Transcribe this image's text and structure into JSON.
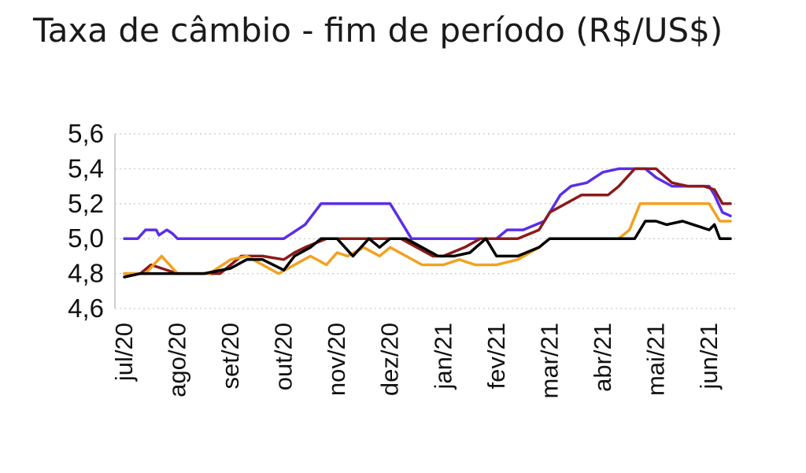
{
  "chart_data": {
    "type": "line",
    "title": "Taxa de câmbio - fim de período (R$/US$)",
    "xlabel": "",
    "ylabel": "",
    "ylim": [
      4.6,
      5.6
    ],
    "yticks": [
      "5,6",
      "5,4",
      "5,2",
      "5,0",
      "4,8",
      "4,6"
    ],
    "ytick_values": [
      5.6,
      5.4,
      5.2,
      5.0,
      4.8,
      4.6
    ],
    "categories": [
      "jul/20",
      "ago/20",
      "set/20",
      "out/20",
      "nov/20",
      "dez/20",
      "jan/21",
      "fev/21",
      "mar/21",
      "abr/21",
      "mai/21",
      "jun/21"
    ],
    "grid": true,
    "legend": "none",
    "series": [
      {
        "color": "#5b2ee6",
        "x": [
          0,
          0.25,
          0.4,
          0.6,
          0.65,
          0.8,
          0.9,
          1,
          2,
          3,
          3.4,
          3.7,
          3.9,
          4,
          4.5,
          5,
          5.2,
          5.4,
          5.7,
          6,
          6.5,
          7,
          7.2,
          7.5,
          7.9,
          8,
          8.2,
          8.4,
          8.7,
          9,
          9.3,
          9.6,
          9.8,
          10,
          10.3,
          10.5,
          10.7,
          11,
          11.1,
          11.25,
          11.4
        ],
        "y": [
          5.0,
          5.0,
          5.05,
          5.05,
          5.02,
          5.05,
          5.03,
          5.0,
          5.0,
          5.0,
          5.08,
          5.2,
          5.2,
          5.2,
          5.2,
          5.2,
          5.1,
          5.0,
          5.0,
          5.0,
          5.0,
          5.0,
          5.05,
          5.05,
          5.1,
          5.15,
          5.25,
          5.3,
          5.32,
          5.38,
          5.4,
          5.4,
          5.4,
          5.35,
          5.3,
          5.3,
          5.3,
          5.3,
          5.25,
          5.15,
          5.13
        ]
      },
      {
        "color": "#8b1a1a",
        "x": [
          0,
          0.3,
          0.5,
          1,
          1.8,
          2,
          2.2,
          2.6,
          3,
          3.2,
          3.4,
          3.8,
          4,
          4.4,
          4.8,
          5,
          5.2,
          5.5,
          5.8,
          6,
          6.4,
          6.7,
          7,
          7.4,
          7.8,
          8,
          8.3,
          8.6,
          8.9,
          9.1,
          9.3,
          9.6,
          9.8,
          10,
          10.3,
          10.6,
          10.9,
          11.1,
          11.25,
          11.4
        ],
        "y": [
          4.8,
          4.8,
          4.85,
          4.8,
          4.8,
          4.85,
          4.9,
          4.9,
          4.88,
          4.92,
          4.95,
          5.0,
          5.0,
          5.0,
          5.0,
          5.0,
          5.0,
          4.95,
          4.9,
          4.9,
          4.95,
          5.0,
          5.0,
          5.0,
          5.05,
          5.15,
          5.2,
          5.25,
          5.25,
          5.25,
          5.3,
          5.4,
          5.4,
          5.4,
          5.32,
          5.3,
          5.3,
          5.28,
          5.2,
          5.2
        ]
      },
      {
        "color": "#f2a121",
        "x": [
          0,
          0.4,
          0.7,
          1,
          1.3,
          1.6,
          2,
          2.3,
          2.6,
          2.9,
          3.2,
          3.5,
          3.8,
          4,
          4.2,
          4.5,
          4.8,
          5,
          5.3,
          5.6,
          6,
          6.3,
          6.6,
          7,
          7.4,
          7.8,
          8,
          8.3,
          8.6,
          9,
          9.3,
          9.5,
          9.7,
          10,
          10.3,
          10.6,
          11,
          11.2,
          11.4
        ],
        "y": [
          4.8,
          4.8,
          4.9,
          4.8,
          4.8,
          4.8,
          4.88,
          4.9,
          4.85,
          4.8,
          4.85,
          4.9,
          4.85,
          4.92,
          4.9,
          4.95,
          4.9,
          4.95,
          4.9,
          4.85,
          4.85,
          4.88,
          4.85,
          4.85,
          4.88,
          4.95,
          5.0,
          5.0,
          5.0,
          5.0,
          5.0,
          5.05,
          5.2,
          5.2,
          5.2,
          5.2,
          5.2,
          5.1,
          5.1
        ]
      },
      {
        "color": "#000000",
        "x": [
          0,
          0.3,
          0.6,
          1,
          1.5,
          2,
          2.3,
          2.6,
          3,
          3.2,
          3.5,
          3.7,
          4,
          4.3,
          4.6,
          4.8,
          5,
          5.3,
          5.6,
          5.9,
          6.2,
          6.5,
          6.8,
          7,
          7.4,
          7.8,
          8,
          8.3,
          8.6,
          9,
          9.3,
          9.6,
          9.8,
          10,
          10.2,
          10.5,
          10.7,
          11,
          11.1,
          11.2,
          11.4
        ],
        "y": [
          4.78,
          4.8,
          4.8,
          4.8,
          4.8,
          4.83,
          4.88,
          4.88,
          4.82,
          4.9,
          4.95,
          5.0,
          5.0,
          4.9,
          5.0,
          4.95,
          5.0,
          5.0,
          4.95,
          4.9,
          4.9,
          4.92,
          5.0,
          4.9,
          4.9,
          4.95,
          5.0,
          5.0,
          5.0,
          5.0,
          5.0,
          5.0,
          5.1,
          5.1,
          5.08,
          5.1,
          5.08,
          5.05,
          5.08,
          5.0,
          5.0
        ]
      }
    ]
  }
}
